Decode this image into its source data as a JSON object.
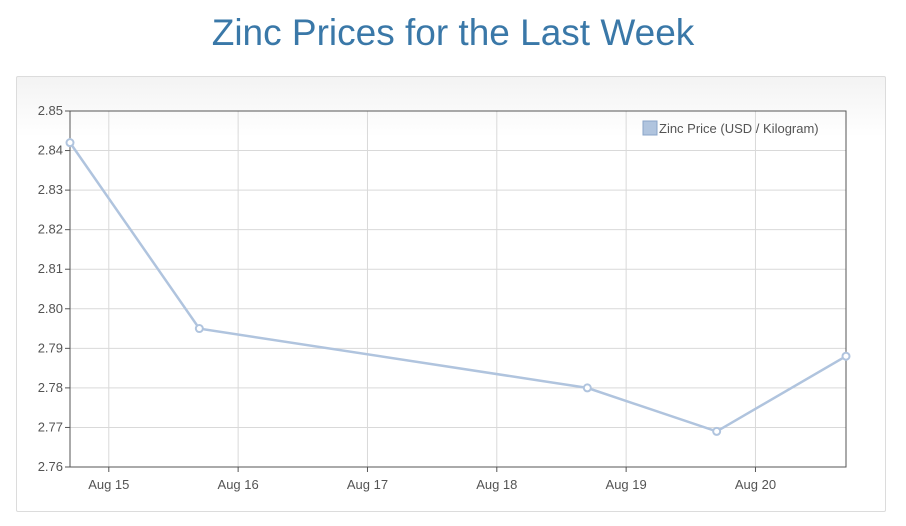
{
  "page": {
    "title": "Zinc Prices for the Last Week"
  },
  "chart_data": {
    "type": "line",
    "title": "Zinc Prices for the Last Week",
    "xlabel": "",
    "ylabel": "",
    "x_ticks": [
      "Aug 15",
      "Aug 16",
      "Aug 17",
      "Aug 18",
      "Aug 19",
      "Aug 20"
    ],
    "x_tick_values": [
      15,
      16,
      17,
      18,
      19,
      20
    ],
    "xlim": [
      14.7,
      20.7
    ],
    "ylim": [
      2.76,
      2.85
    ],
    "y_ticks": [
      "2.76",
      "2.77",
      "2.78",
      "2.79",
      "2.80",
      "2.81",
      "2.82",
      "2.83",
      "2.84",
      "2.85"
    ],
    "grid": true,
    "legend_position": "top-right",
    "series": [
      {
        "name": "Zinc Price (USD / Kilogram)",
        "color": "#b0c4de",
        "x": [
          14.7,
          15.7,
          18.7,
          19.7,
          20.7
        ],
        "y": [
          2.842,
          2.795,
          2.78,
          2.769,
          2.788
        ]
      }
    ]
  }
}
